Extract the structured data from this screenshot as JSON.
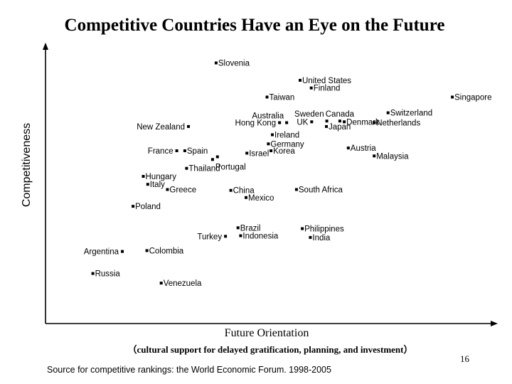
{
  "page_number": "16",
  "source": "Source for competitive rankings: the World Economic Forum. 1998-2005",
  "chart_data": {
    "type": "scatter",
    "title": "Competitive Countries Have an Eye on the Future",
    "xlabel": "Future Orientation",
    "xlabel_sub": "（cultural support for delayed gratification, planning, and investment）",
    "ylabel": "Competitiveness",
    "xlim": [
      0,
      100
    ],
    "ylim": [
      0,
      100
    ],
    "grid": false,
    "marker_color": "#000000",
    "points": [
      {
        "name": "Slovenia",
        "x": 38.2,
        "y": 94.7,
        "label_pos": "right"
      },
      {
        "name": "United States",
        "x": 57.0,
        "y": 88.4,
        "label_pos": "right"
      },
      {
        "name": "Finland",
        "x": 59.5,
        "y": 85.6,
        "label_pos": "right"
      },
      {
        "name": "Taiwan",
        "x": 49.6,
        "y": 82.3,
        "label_pos": "right"
      },
      {
        "name": "Singapore",
        "x": 91.1,
        "y": 82.3,
        "label_pos": "right"
      },
      {
        "name": "Australia",
        "x": 54.0,
        "y": 73.0,
        "label_pos": "above-left"
      },
      {
        "name": "Hong Kong",
        "x": 52.4,
        "y": 73.0,
        "label_pos": "left"
      },
      {
        "name": "Sweden",
        "x": 63.0,
        "y": 73.6,
        "label_pos": "above-left"
      },
      {
        "name": "Canada",
        "x": 65.9,
        "y": 73.6,
        "label_pos": "above"
      },
      {
        "name": "UK",
        "x": 59.6,
        "y": 73.3,
        "label_pos": "left"
      },
      {
        "name": "Denmark",
        "x": 66.9,
        "y": 73.3,
        "label_pos": "right"
      },
      {
        "name": "Switzerland",
        "x": 76.7,
        "y": 76.6,
        "label_pos": "right"
      },
      {
        "name": "Netherlands",
        "x": 73.6,
        "y": 73.0,
        "label_pos": "right"
      },
      {
        "name": "Japan",
        "x": 62.9,
        "y": 71.6,
        "label_pos": "right"
      },
      {
        "name": "New Zealand",
        "x": 32.0,
        "y": 71.6,
        "label_pos": "left"
      },
      {
        "name": "Ireland",
        "x": 50.8,
        "y": 68.6,
        "label_pos": "right"
      },
      {
        "name": "Germany",
        "x": 49.9,
        "y": 65.3,
        "label_pos": "right"
      },
      {
        "name": "Austria",
        "x": 67.8,
        "y": 63.8,
        "label_pos": "right"
      },
      {
        "name": "France",
        "x": 29.4,
        "y": 62.8,
        "label_pos": "left"
      },
      {
        "name": "Spain",
        "x": 31.2,
        "y": 62.8,
        "label_pos": "right"
      },
      {
        "name": "Israel",
        "x": 45.1,
        "y": 61.9,
        "label_pos": "right"
      },
      {
        "name": "Korea",
        "x": 50.5,
        "y": 62.8,
        "label_pos": "right"
      },
      {
        "name": "Malaysia",
        "x": 73.6,
        "y": 60.9,
        "label_pos": "right"
      },
      {
        "name": "Portugal",
        "x": 37.4,
        "y": 59.6,
        "label_pos": "below"
      },
      {
        "name": "Thailand",
        "x": 31.6,
        "y": 56.4,
        "label_pos": "right"
      },
      {
        "name": "Hungary",
        "x": 21.9,
        "y": 53.5,
        "label_pos": "right"
      },
      {
        "name": "Italy",
        "x": 22.9,
        "y": 50.6,
        "label_pos": "right"
      },
      {
        "name": "Greece",
        "x": 27.3,
        "y": 48.7,
        "label_pos": "right"
      },
      {
        "name": "China",
        "x": 41.5,
        "y": 48.4,
        "label_pos": "right"
      },
      {
        "name": "South Africa",
        "x": 56.2,
        "y": 48.7,
        "label_pos": "right"
      },
      {
        "name": "Mexico",
        "x": 44.9,
        "y": 45.8,
        "label_pos": "right"
      },
      {
        "name": "Poland",
        "x": 19.6,
        "y": 42.6,
        "label_pos": "right"
      },
      {
        "name": "Brazil",
        "x": 43.1,
        "y": 34.8,
        "label_pos": "right"
      },
      {
        "name": "Philippines",
        "x": 57.5,
        "y": 34.5,
        "label_pos": "right"
      },
      {
        "name": "Turkey",
        "x": 40.3,
        "y": 31.7,
        "label_pos": "left"
      },
      {
        "name": "Indonesia",
        "x": 43.7,
        "y": 31.9,
        "label_pos": "right"
      },
      {
        "name": "India",
        "x": 59.3,
        "y": 31.3,
        "label_pos": "right"
      },
      {
        "name": "Argentina",
        "x": 17.2,
        "y": 26.2,
        "label_pos": "left"
      },
      {
        "name": "Colombia",
        "x": 22.7,
        "y": 26.5,
        "label_pos": "right"
      },
      {
        "name": "Russia",
        "x": 10.6,
        "y": 18.2,
        "label_pos": "right"
      },
      {
        "name": "Venezuela",
        "x": 25.9,
        "y": 14.7,
        "label_pos": "right"
      }
    ],
    "unlabeled_points": [
      {
        "x": 38.5,
        "y": 60.6
      }
    ]
  }
}
